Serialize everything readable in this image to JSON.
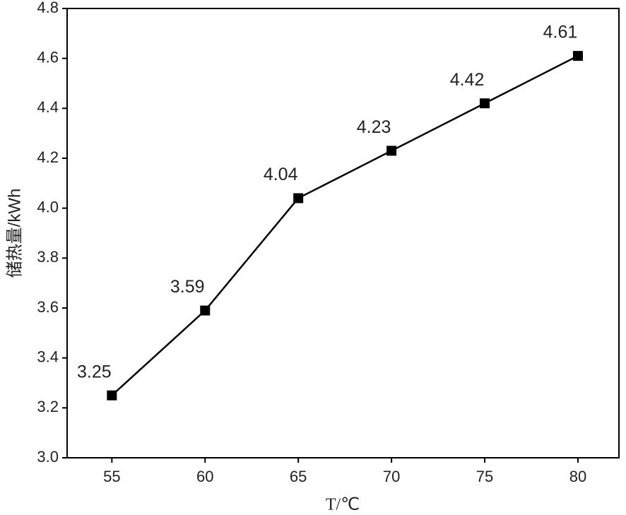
{
  "chart_data": {
    "type": "line",
    "x_label": "T/℃",
    "y_label": "储热量/kWh",
    "x": [
      55,
      60,
      65,
      70,
      75,
      80
    ],
    "series": [
      {
        "color": "#000000",
        "values": [
          3.25,
          3.59,
          4.04,
          4.23,
          4.42,
          4.61
        ]
      }
    ],
    "xlim": [
      52.6,
      82.2
    ],
    "xticks": [
      55,
      60,
      65,
      70,
      75,
      80
    ],
    "ylim": [
      3.0,
      4.8
    ],
    "yticks": [
      {
        "value": 3.0,
        "label": "3.0"
      },
      {
        "value": 3.2,
        "label": "3.2"
      },
      {
        "value": 3.4,
        "label": "3.4"
      },
      {
        "value": 3.6,
        "label": "3.6"
      },
      {
        "value": 3.8,
        "label": "3.8"
      },
      {
        "value": 4.0,
        "label": "4.0"
      },
      {
        "value": 4.2,
        "label": "4.2"
      },
      {
        "value": 4.4,
        "label": "4.4"
      },
      {
        "value": 4.6,
        "label": "4.6"
      },
      {
        "value": 4.8,
        "label": "4.8"
      }
    ],
    "grid": false
  }
}
